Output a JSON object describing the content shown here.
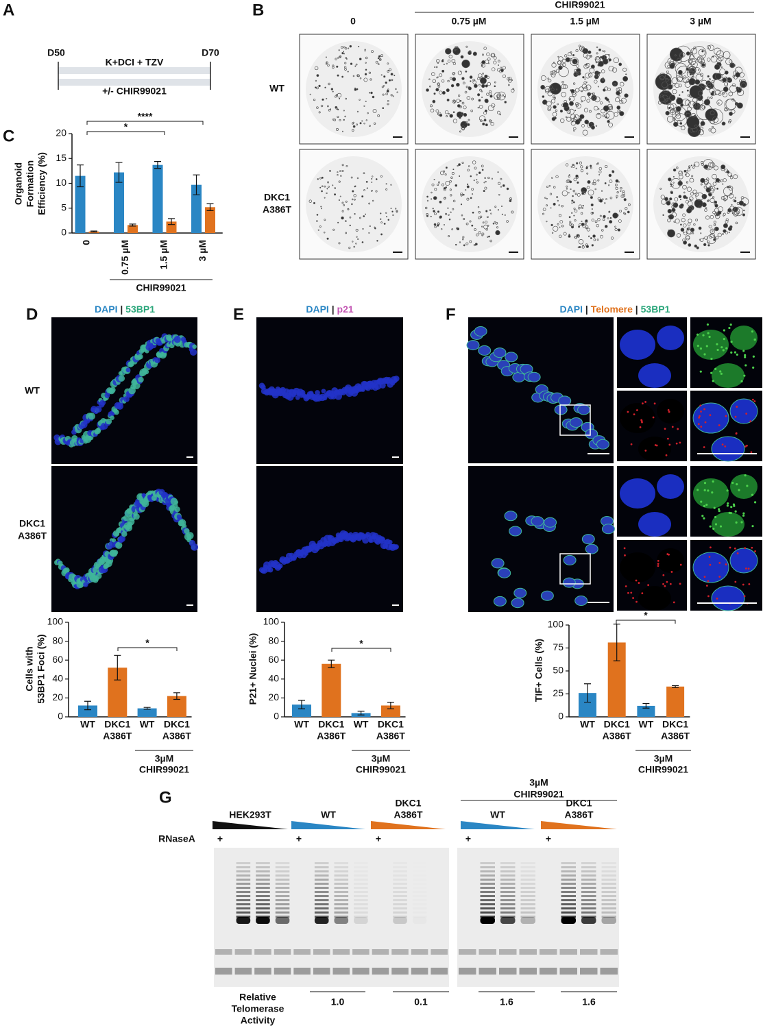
{
  "panel_a": {
    "label": "A",
    "start": "D50",
    "end": "D70",
    "top": "K+DCI + TZV",
    "bottom": "+/- CHIR99021"
  },
  "panel_b": {
    "label": "B",
    "group": "CHIR99021",
    "columns": [
      "0",
      "0.75 µM",
      "1.5 µM",
      "3 µM"
    ],
    "rows": [
      {
        "lines": [
          "WT"
        ],
        "color": "#2a86c4"
      },
      {
        "lines": [
          "DKC1",
          "A386T"
        ],
        "color": "#e0721e"
      }
    ]
  },
  "panel_d": {
    "label": "D",
    "rows": [
      {
        "lines": [
          "WT"
        ],
        "color": "#2a86c4"
      },
      {
        "lines": [
          "DKC1",
          "A386T"
        ],
        "color": "#e0721e"
      }
    ],
    "stains": [
      {
        "text": "DAPI",
        "color": "#2a86c4"
      },
      {
        "text": " | ",
        "color": "#222222"
      },
      {
        "text": "53BP1",
        "color": "#2aa67a"
      }
    ]
  },
  "panel_e": {
    "label": "E",
    "stains": [
      {
        "text": "DAPI",
        "color": "#2a86c4"
      },
      {
        "text": " | ",
        "color": "#222222"
      },
      {
        "text": "p21",
        "color": "#c458b4"
      }
    ]
  },
  "panel_f": {
    "label": "F",
    "stains": [
      {
        "text": "DAPI",
        "color": "#2a86c4"
      },
      {
        "text": " | ",
        "color": "#222222"
      },
      {
        "text": "Telomere",
        "color": "#e0721e"
      },
      {
        "text": " | ",
        "color": "#222222"
      },
      {
        "text": "53BP1",
        "color": "#2aa67a"
      }
    ]
  },
  "panel_g": {
    "label": "G",
    "group": [
      "3µM",
      "CHIR99021"
    ],
    "lanes": [
      {
        "lines": [
          "HEK293T"
        ],
        "color": "#111111"
      },
      {
        "lines": [
          "WT"
        ],
        "color": "#2a86c4"
      },
      {
        "lines": [
          "DKC1",
          "A386T"
        ],
        "color": "#e0721e"
      },
      {
        "lines": [
          "WT"
        ],
        "color": "#2a86c4"
      },
      {
        "lines": [
          "DKC1",
          "A386T"
        ],
        "color": "#e0721e"
      }
    ],
    "treatment": "RNaseA",
    "plus": "+",
    "activity_label": [
      "Relative",
      "Telomerase",
      "Activity"
    ],
    "activity": [
      "1.0",
      "0.1",
      "1.6",
      "1.6"
    ]
  },
  "chart_data": [
    {
      "type": "bar",
      "label": "C",
      "ylabel": [
        "Organoid",
        "Formation",
        "Efficiency (%)"
      ],
      "categories": [
        "0",
        "0.75 µM",
        "1.5 µM",
        "3 µM"
      ],
      "group": [
        "CHIR99021"
      ],
      "series": [
        {
          "color": "#2a86c4",
          "values": [
            11.5,
            12.2,
            13.7,
            9.7
          ],
          "errors": [
            2.2,
            2.0,
            0.7,
            2.0
          ]
        },
        {
          "color": "#e0721e",
          "values": [
            0.3,
            1.6,
            2.3,
            5.2
          ],
          "errors": [
            0.1,
            0.2,
            0.6,
            0.7
          ]
        }
      ],
      "ylim": [
        0,
        20
      ],
      "yticks": [
        0,
        5,
        10,
        15,
        20
      ],
      "grid": false,
      "annotations": [
        "*",
        "****"
      ]
    },
    {
      "type": "bar",
      "ylabel": [
        "Cells with",
        "53BP1 Foci (%)"
      ],
      "categories": [
        [
          "WT"
        ],
        [
          "DKC1",
          "A386T"
        ],
        [
          "WT"
        ],
        [
          "DKC1",
          "A386T"
        ]
      ],
      "colors": [
        "#2a86c4",
        "#e0721e",
        "#2a86c4",
        "#e0721e"
      ],
      "values": [
        12,
        52,
        9,
        22
      ],
      "errors": [
        4.5,
        13,
        1,
        3.5
      ],
      "group": [
        "3µM",
        "CHIR99021"
      ],
      "ylim": [
        0,
        100
      ],
      "yticks": [
        0,
        20,
        40,
        60,
        80,
        100
      ],
      "grid": false,
      "annotations": [
        "*"
      ]
    },
    {
      "type": "bar",
      "ylabel": [
        "P21+ Nuclei (%)"
      ],
      "categories": [
        [
          "WT"
        ],
        [
          "DKC1",
          "A386T"
        ],
        [
          "WT"
        ],
        [
          "DKC1",
          "A386T"
        ]
      ],
      "colors": [
        "#2a86c4",
        "#e0721e",
        "#2a86c4",
        "#e0721e"
      ],
      "values": [
        13,
        56,
        4,
        12
      ],
      "errors": [
        4.5,
        4,
        2,
        3.5
      ],
      "group": [
        "3µM",
        "CHIR99021"
      ],
      "ylim": [
        0,
        100
      ],
      "yticks": [
        0,
        20,
        40,
        60,
        80,
        100
      ],
      "grid": false,
      "annotations": [
        "*"
      ]
    },
    {
      "type": "bar",
      "ylabel": [
        "TIF+ Cells (%)"
      ],
      "categories": [
        [
          "WT"
        ],
        [
          "DKC1",
          "A386T"
        ],
        [
          "WT"
        ],
        [
          "DKC1",
          "A386T"
        ]
      ],
      "colors": [
        "#2a86c4",
        "#e0721e",
        "#2a86c4",
        "#e0721e"
      ],
      "values": [
        26,
        81,
        12,
        33
      ],
      "errors": [
        10,
        20,
        2.5,
        1
      ],
      "group": [
        "3µM",
        "CHIR99021"
      ],
      "ylim": [
        0,
        100
      ],
      "yticks": [
        0,
        25,
        50,
        75,
        100
      ],
      "grid": false,
      "annotations": [
        "*"
      ]
    }
  ]
}
